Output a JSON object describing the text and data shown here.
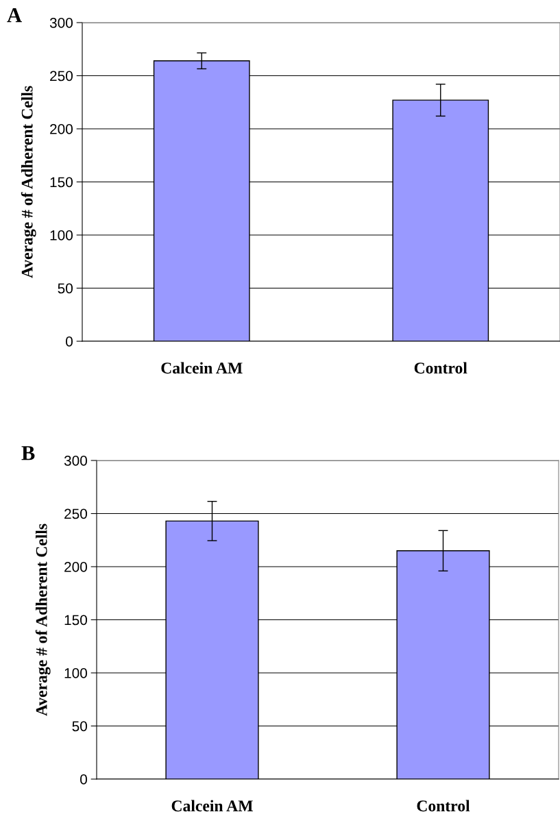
{
  "chart_data": [
    {
      "type": "bar",
      "title": "A",
      "ylabel": "Average # of Adherent Cells",
      "categories": [
        "Calcein AM",
        "Control"
      ],
      "values": [
        264,
        227
      ],
      "errors": [
        7.5,
        15
      ],
      "color": "#9999ff",
      "ylim": [
        0,
        300
      ],
      "yticks": [
        0,
        50,
        100,
        150,
        200,
        250,
        300
      ],
      "grid": "y"
    },
    {
      "type": "bar",
      "title": "B",
      "ylabel": "Average # of Adherent Cells",
      "categories": [
        "Calcein AM",
        "Control"
      ],
      "values": [
        243,
        215
      ],
      "errors": [
        18.5,
        19
      ],
      "color": "#9999ff",
      "ylim": [
        0,
        300
      ],
      "yticks": [
        0,
        50,
        100,
        150,
        200,
        250,
        300
      ],
      "grid": "y"
    }
  ]
}
